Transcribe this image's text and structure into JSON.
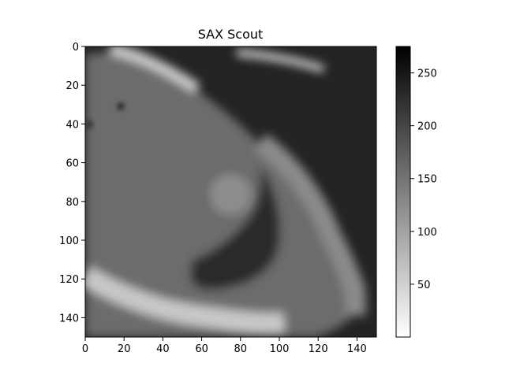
{
  "chart_data": {
    "type": "heatmap",
    "title": "SAX Scout",
    "xlabel": "",
    "ylabel": "",
    "xlim": [
      0,
      150
    ],
    "ylim": [
      150,
      0
    ],
    "x_ticks": [
      0,
      20,
      40,
      60,
      80,
      100,
      120,
      140
    ],
    "y_ticks": [
      0,
      20,
      40,
      60,
      80,
      100,
      120,
      140
    ],
    "colormap": "gray_r",
    "colorbar": {
      "range": [
        0,
        275
      ],
      "ticks": [
        50,
        100,
        150,
        200,
        250
      ]
    },
    "image_description_values": {
      "background_level": 230,
      "tissue_level": 150,
      "bright_band_level": 40,
      "cavity_level": 245
    }
  }
}
